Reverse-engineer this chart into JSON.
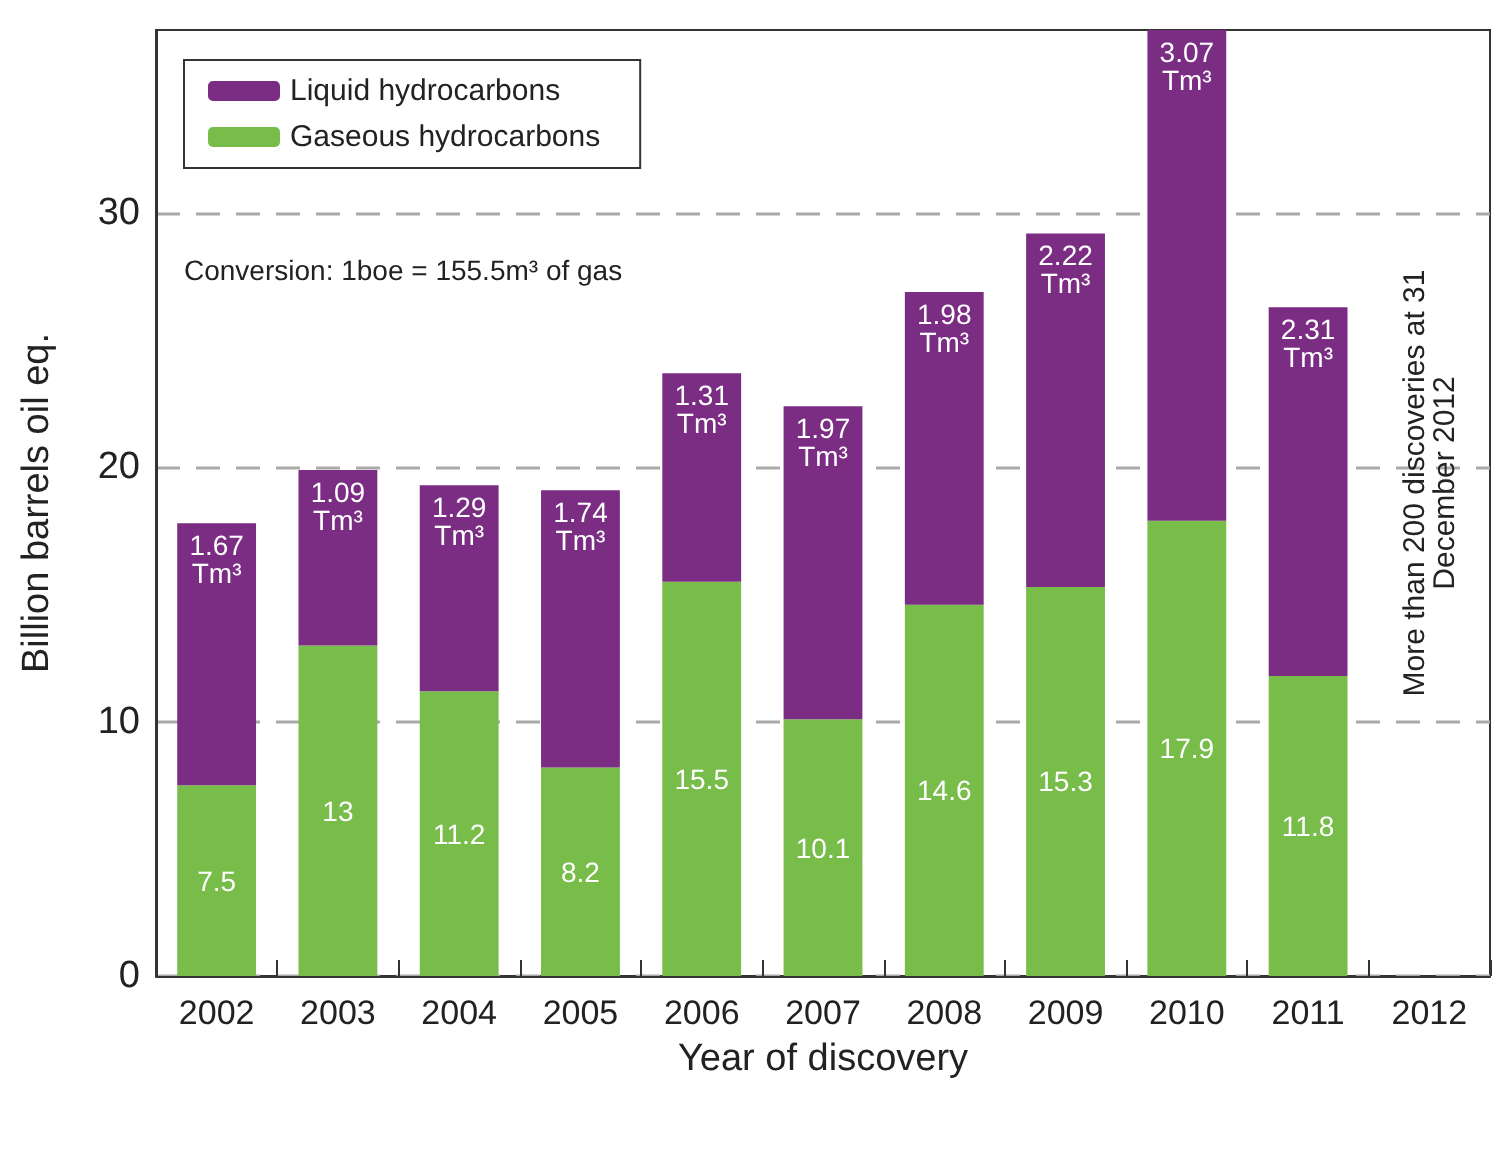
{
  "chart_data": {
    "type": "bar",
    "stacked": true,
    "xlabel": "Year of discovery",
    "ylabel": "Billion barrels oil eq.",
    "categories": [
      "2002",
      "2003",
      "2004",
      "2005",
      "2006",
      "2007",
      "2008",
      "2009",
      "2010",
      "2011",
      "2012"
    ],
    "series": [
      {
        "name": "Gaseous hydrocarbons",
        "color": "#78bc4a",
        "values": [
          7.5,
          13,
          11.2,
          8.2,
          15.5,
          10.1,
          14.6,
          15.3,
          17.9,
          11.8,
          null
        ],
        "value_labels": [
          "7.5",
          "13",
          "11.2",
          "8.2",
          "15.5",
          "10.1",
          "14.6",
          "15.3",
          "17.9",
          "11.8",
          null
        ]
      },
      {
        "name": "Liquid hydrocarbons",
        "color": "#7b2d83",
        "values": [
          10.3,
          6.9,
          8.1,
          10.9,
          8.2,
          12.3,
          12.3,
          13.9,
          19.3,
          14.5,
          null
        ]
      }
    ],
    "ylim": [
      0,
      37.2
    ],
    "yticks": [
      0,
      10,
      20,
      30
    ],
    "grid": "y",
    "legend": "top left",
    "annotations": [
      "Conversion: 1boe = 155.5m³ of gas",
      "More than 200 discoveries at 31\nDecember 2012",
      {
        "text": "1.67\nTm³",
        "x": "2002",
        "y": 17.8
      },
      {
        "text": "1.09\nTm³",
        "x": "2003",
        "y": 19.9
      },
      {
        "text": "1.29\nTm³",
        "x": "2004",
        "y": 19.3
      },
      {
        "text": "1.74\nTm³",
        "x": "2005",
        "y": 19.1
      },
      {
        "text": "1.31\nTm³",
        "x": "2006",
        "y": 23.7
      },
      {
        "text": "1.97\nTm³",
        "x": "2007",
        "y": 22.4
      },
      {
        "text": "1.98\nTm³",
        "x": "2008",
        "y": 26.9
      },
      {
        "text": "2.22\nTm³",
        "x": "2009",
        "y": 29.2
      },
      {
        "text": "3.07\nTm³",
        "x": "2010",
        "y": 37.2
      },
      {
        "text": "2.31\nTm³",
        "x": "2011",
        "y": 26.3
      }
    ]
  }
}
